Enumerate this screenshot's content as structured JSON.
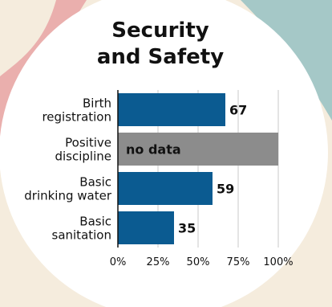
{
  "title_lines": [
    "Security",
    "and Safety"
  ],
  "colors": {
    "bar": "#0b5b91",
    "no_data_bar": "#8c8c8c",
    "circle": "#ffffff",
    "background": "#f5ecdd",
    "accent_left": "#e8a5a5",
    "accent_right": "#9cc4c4"
  },
  "chart_data": {
    "type": "bar",
    "orientation": "horizontal",
    "title": "Security and Safety",
    "categories": [
      [
        "Birth",
        "registration"
      ],
      [
        "Positive",
        "discipline"
      ],
      [
        "Basic",
        "drinking water"
      ],
      [
        "Basic",
        "sanitation"
      ]
    ],
    "values": [
      67,
      null,
      59,
      35
    ],
    "value_labels": [
      "67",
      "no data",
      "59",
      "35"
    ],
    "xlim": [
      0,
      100
    ],
    "x_ticks": [
      0,
      25,
      50,
      75,
      100
    ],
    "x_tick_labels": [
      "0%",
      "25%",
      "50%",
      "75%",
      "100%"
    ],
    "grid": true
  }
}
